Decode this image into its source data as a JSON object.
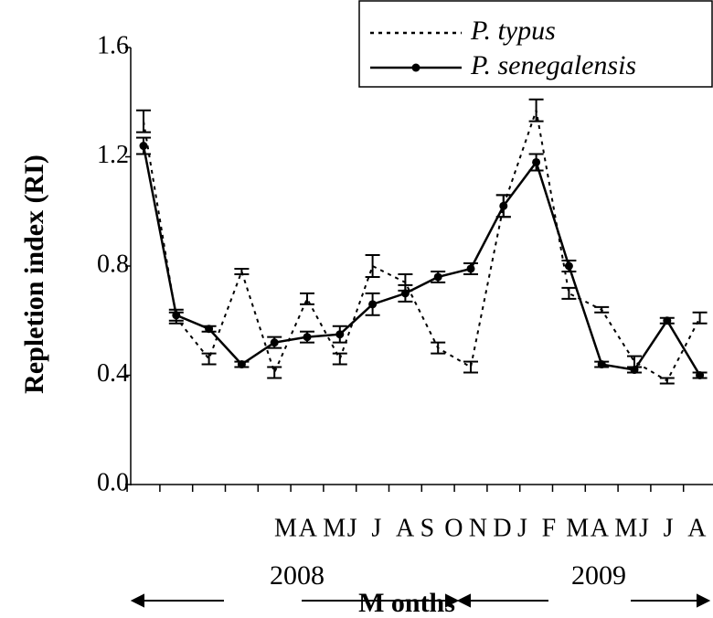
{
  "chart_data": {
    "type": "line",
    "ylabel": "Repletion index (RI)",
    "xlabel": "M onths",
    "categories": [
      "M",
      "A",
      "M",
      "J",
      "J",
      "A",
      "S",
      "O",
      "N",
      "D",
      "J",
      "F",
      "M",
      "A",
      "M",
      "J",
      "J",
      "A"
    ],
    "years": [
      "2008",
      "2009"
    ],
    "ylim": [
      0,
      1.6
    ],
    "yticks": [
      {
        "value": 0,
        "label": "0.0"
      },
      0.4,
      0.8,
      1.2,
      1.6
    ],
    "legend": "top-right",
    "series": [
      {
        "name": "P. typus",
        "color": "#000000",
        "style": "dotted",
        "marker": "none",
        "values": [
          1.33,
          0.61,
          0.46,
          0.78,
          0.41,
          0.68,
          0.46,
          0.8,
          0.74,
          0.5,
          0.43,
          1.02,
          1.37,
          0.7,
          0.64,
          0.45,
          0.38,
          0.61
        ],
        "errors": [
          0.04,
          0.02,
          0.02,
          0.01,
          0.02,
          0.02,
          0.02,
          0.04,
          0.03,
          0.02,
          0.02,
          0.04,
          0.04,
          0.02,
          0.01,
          0.02,
          0.01,
          0.02
        ]
      },
      {
        "name": "P. senegalensis",
        "color": "#000000",
        "style": "solid",
        "marker": "circle",
        "values": [
          1.24,
          0.62,
          0.57,
          0.44,
          0.52,
          0.54,
          0.55,
          0.66,
          0.7,
          0.76,
          0.79,
          1.02,
          1.18,
          0.8,
          0.44,
          0.42,
          0.6,
          0.4
        ],
        "errors": [
          0.03,
          0.02,
          0.01,
          0.01,
          0.02,
          0.02,
          0.03,
          0.04,
          0.03,
          0.02,
          0.02,
          0.04,
          0.03,
          0.02,
          0.01,
          0.01,
          0.01,
          0.01
        ]
      }
    ]
  }
}
